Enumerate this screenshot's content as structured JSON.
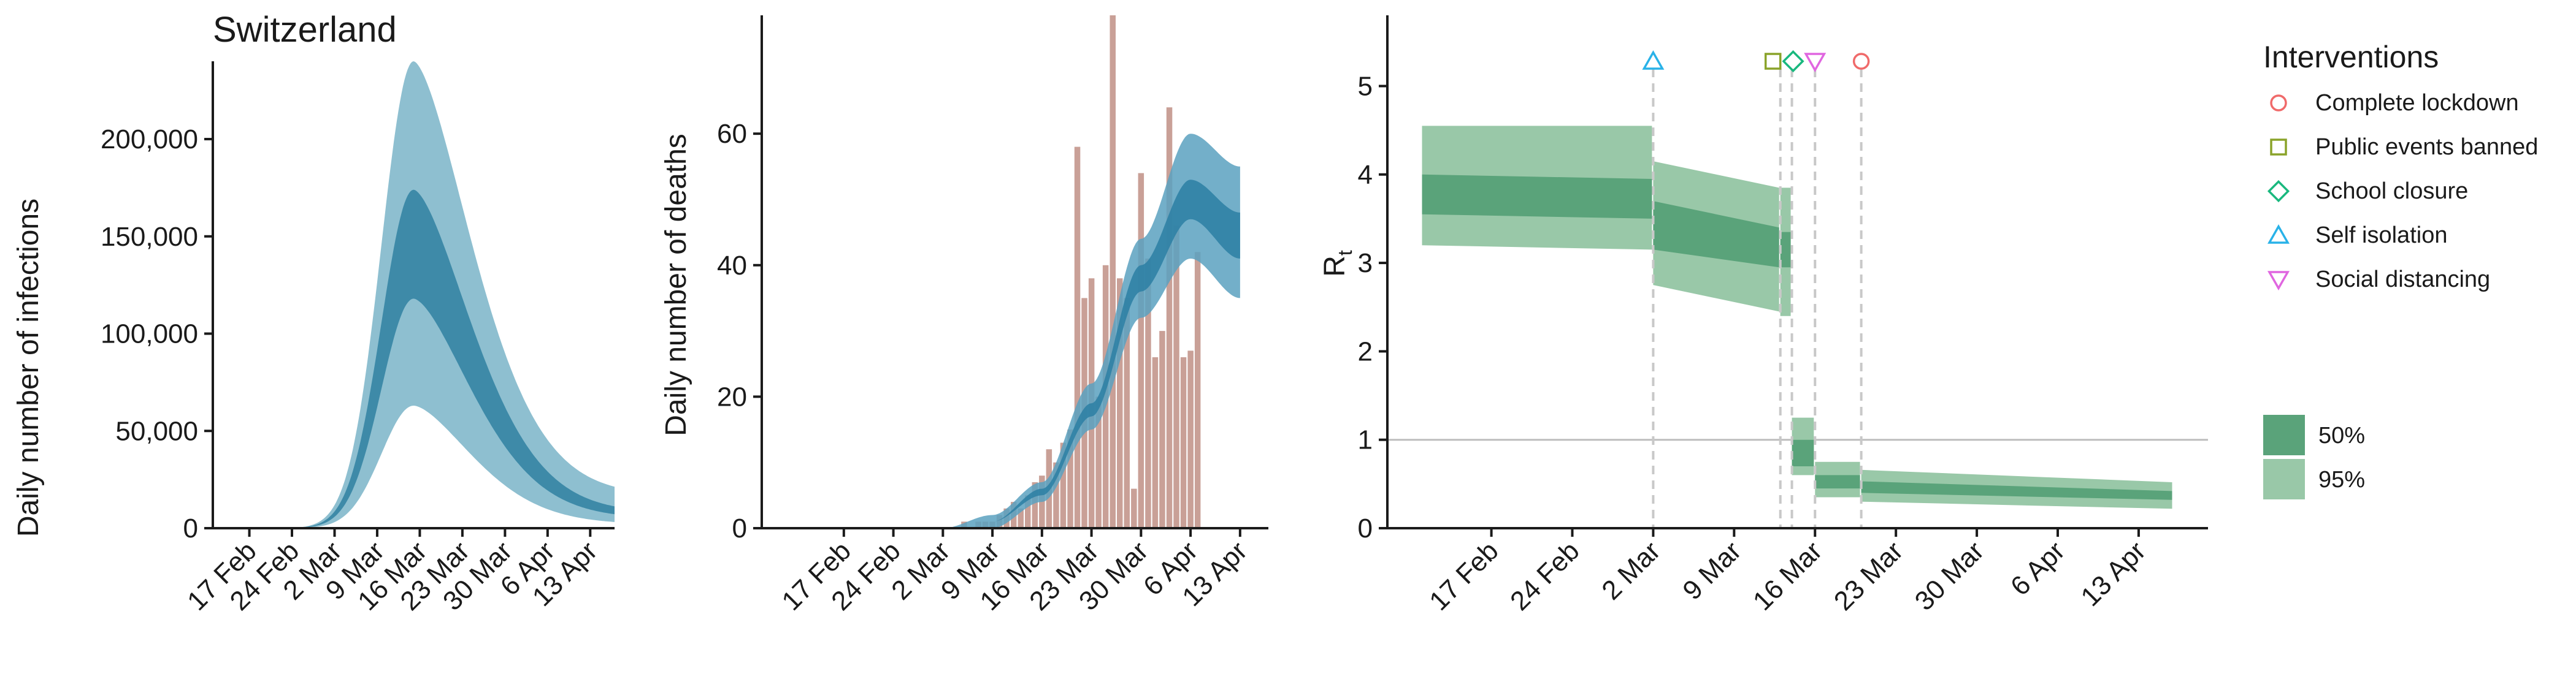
{
  "colors": {
    "infections_95": "#8ebfd0",
    "infections_50": "#3e8aa8",
    "deaths_95": "#5aa1bf",
    "deaths_50": "#2b7fa3",
    "death_bars": "#c9a097",
    "rt_95": "#99c8a8",
    "rt_50": "#5aa37a",
    "axis": "#1a1a1a",
    "intervention_line": "#c8c8c8",
    "lockdown": "#f06a6a",
    "public_events": "#8aa32a",
    "school": "#19b87e",
    "self_isolation": "#29b2e8",
    "social_distancing": "#e066e0"
  },
  "chart_data": [
    {
      "type": "area",
      "title": "Switzerland",
      "ylabel": "Daily number of infections",
      "xlabel": "",
      "x_ticks": [
        "17 Feb",
        "24 Feb",
        "2 Mar",
        "9 Mar",
        "16 Mar",
        "23 Mar",
        "30 Mar",
        "6 Apr",
        "13 Apr"
      ],
      "x_range": [
        "2020-02-11",
        "2020-04-17"
      ],
      "y_ticks": [
        0,
        50000,
        100000,
        150000,
        200000
      ],
      "y_tick_labels": [
        "0",
        "50,000",
        "100,000",
        "150,000",
        "200,000"
      ],
      "ylim": [
        0,
        240000
      ],
      "peak_date": "2020-03-15",
      "series": [
        {
          "name": "95%",
          "upper_peak": 240000,
          "lower_peak": 63000,
          "upper_end": 17000,
          "lower_end": 2000
        },
        {
          "name": "50%",
          "upper_peak": 174000,
          "lower_peak": 118000,
          "upper_end": 8000,
          "lower_end": 5000
        }
      ]
    },
    {
      "type": "bar",
      "ylabel": "Daily number of deaths",
      "xlabel": "",
      "x_ticks": [
        "17 Feb",
        "24 Feb",
        "2 Mar",
        "9 Mar",
        "16 Mar",
        "23 Mar",
        "30 Mar",
        "6 Apr",
        "13 Apr"
      ],
      "y_ticks": [
        0,
        20,
        40,
        60
      ],
      "ylim": [
        0,
        78
      ],
      "bar_start_date": "2020-03-05",
      "bar_values": [
        1,
        0,
        1,
        1,
        1,
        2,
        3,
        4,
        3,
        5,
        7,
        8,
        12,
        10,
        13,
        15,
        58,
        35,
        38,
        20,
        40,
        78,
        38,
        35,
        6,
        54,
        41,
        26,
        30,
        64,
        46,
        26,
        27,
        42
      ],
      "band_dates": [
        "2020-03-02",
        "2020-03-09",
        "2020-03-16",
        "2020-03-23",
        "2020-03-30",
        "2020-04-06",
        "2020-04-13"
      ],
      "series": [
        {
          "name": "95%",
          "upper": [
            0,
            2,
            7,
            22,
            44,
            60,
            55
          ],
          "lower": [
            0,
            0,
            4,
            15,
            32,
            41,
            35
          ]
        },
        {
          "name": "50%",
          "upper": [
            0,
            1,
            6,
            19,
            40,
            53,
            48
          ],
          "lower": [
            0,
            1,
            5,
            17,
            36,
            47,
            41
          ]
        }
      ]
    },
    {
      "type": "area",
      "ylabel": "R",
      "ylabel_subscript": "t",
      "xlabel": "",
      "x_ticks": [
        "17 Feb",
        "24 Feb",
        "2 Mar",
        "9 Mar",
        "16 Mar",
        "23 Mar",
        "30 Mar",
        "6 Apr",
        "13 Apr"
      ],
      "y_ticks": [
        0,
        1,
        2,
        3,
        4,
        5
      ],
      "ylim": [
        0,
        5.8
      ],
      "reference_line": 1,
      "legend_title": "Interventions",
      "legend_position": "right",
      "interventions": [
        {
          "name": "Complete lockdown",
          "date": "2020-03-20",
          "marker": "circle"
        },
        {
          "name": "Public events banned",
          "date": "2020-03-13",
          "marker": "square"
        },
        {
          "name": "School closure",
          "date": "2020-03-14",
          "marker": "diamond"
        },
        {
          "name": "Self isolation",
          "date": "2020-03-02",
          "marker": "triangle-up"
        },
        {
          "name": "Social distancing",
          "date": "2020-03-16",
          "marker": "triangle-down"
        }
      ],
      "band_legend": [
        {
          "name": "50%"
        },
        {
          "name": "95%"
        }
      ],
      "segments": [
        {
          "start": "2020-02-11",
          "end": "2020-03-02",
          "q50": [
            3.55,
            4.0,
            3.5,
            3.95
          ],
          "q95": [
            3.2,
            4.55,
            3.15,
            4.55
          ]
        },
        {
          "start": "2020-03-02",
          "end": "2020-03-13",
          "q50": [
            3.15,
            3.7,
            2.95,
            3.4
          ],
          "q95": [
            2.75,
            4.15,
            2.45,
            3.85
          ]
        },
        {
          "start": "2020-03-13",
          "end": "2020-03-14",
          "q50": [
            2.95,
            3.35,
            2.95,
            3.35
          ],
          "q95": [
            2.4,
            3.85,
            2.4,
            3.85
          ]
        },
        {
          "start": "2020-03-14",
          "end": "2020-03-16",
          "q50": [
            0.7,
            1.0,
            0.7,
            1.0
          ],
          "q95": [
            0.6,
            1.25,
            0.6,
            1.25
          ]
        },
        {
          "start": "2020-03-16",
          "end": "2020-03-20",
          "q50": [
            0.45,
            0.6,
            0.45,
            0.6
          ],
          "q95": [
            0.35,
            0.75,
            0.35,
            0.75
          ]
        },
        {
          "start": "2020-03-20",
          "end": "2020-04-16",
          "q50": [
            0.4,
            0.53,
            0.32,
            0.42
          ],
          "q95": [
            0.3,
            0.66,
            0.22,
            0.52
          ]
        }
      ]
    }
  ]
}
